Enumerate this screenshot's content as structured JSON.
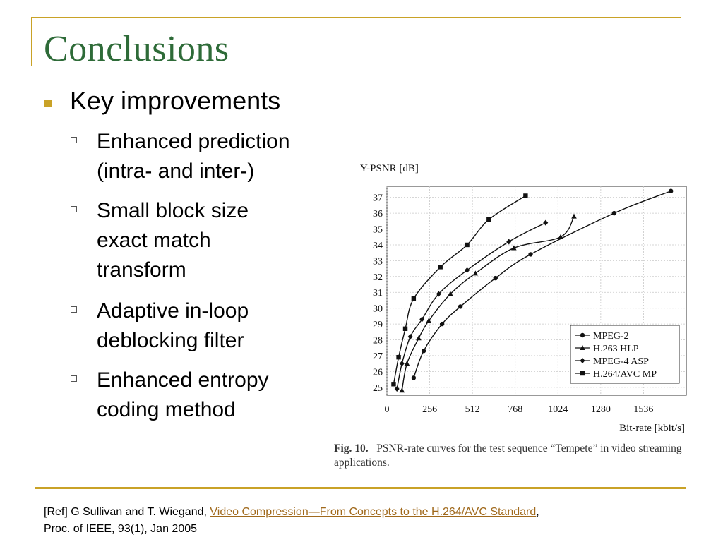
{
  "slide": {
    "title": "Conclusions",
    "main_bullet": "Key improvements",
    "sub_bullets": [
      "Enhanced prediction\n(intra- and inter-)",
      "Small block size\nexact match\ntransform",
      "Adaptive in-loop\ndeblocking filter",
      "Enhanced entropy\ncoding method"
    ]
  },
  "caption": {
    "label": "Fig. 10.",
    "text": "PSNR-rate curves for the test sequence “Tempete” in video streaming applications."
  },
  "reference": {
    "prefix": "[Ref] G Sullivan and T. Wiegand, ",
    "link_text": "Video Compression—From Concepts to the H.264/AVC Standard",
    "suffix": ",",
    "line2": "Proc. of IEEE, 93(1), Jan 2005"
  },
  "colors": {
    "accent": "#c9a227",
    "title": "#2e6b38",
    "link": "#a0691c"
  },
  "chart_data": {
    "type": "line",
    "ylabel": "Y-PSNR [dB]",
    "xlabel": "Bit-rate [kbit/s]",
    "xlim": [
      0,
      1792
    ],
    "ylim": [
      24.5,
      37.7
    ],
    "xticks": [
      0,
      256,
      512,
      768,
      1024,
      1280,
      1536
    ],
    "yticks": [
      25,
      26,
      27,
      28,
      29,
      30,
      31,
      32,
      33,
      34,
      35,
      36,
      37
    ],
    "grid": true,
    "legend": "bottom-right",
    "series": [
      {
        "name": "MPEG-2",
        "marker": "circle",
        "x": [
          160,
          220,
          330,
          440,
          650,
          860,
          1360,
          1700
        ],
        "y": [
          25.6,
          27.3,
          29.0,
          30.1,
          31.9,
          33.4,
          36.0,
          37.4
        ]
      },
      {
        "name": "H.263 HLP",
        "marker": "triangle",
        "x": [
          90,
          120,
          190,
          250,
          380,
          530,
          760,
          1040,
          1120
        ],
        "y": [
          24.8,
          26.5,
          28.1,
          29.2,
          30.9,
          32.2,
          33.8,
          34.5,
          35.8
        ]
      },
      {
        "name": "MPEG-4 ASP",
        "marker": "diamond",
        "x": [
          60,
          90,
          140,
          210,
          310,
          480,
          730,
          950
        ],
        "y": [
          24.9,
          26.5,
          28.2,
          29.3,
          30.9,
          32.4,
          34.2,
          35.4
        ]
      },
      {
        "name": "H.264/AVC MP",
        "marker": "square",
        "x": [
          40,
          70,
          110,
          160,
          320,
          480,
          610,
          830
        ],
        "y": [
          25.2,
          26.9,
          28.7,
          30.6,
          32.6,
          34.0,
          35.6,
          37.1
        ]
      }
    ]
  }
}
